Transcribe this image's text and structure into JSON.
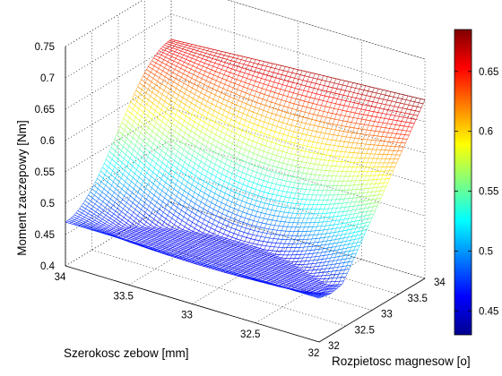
{
  "chart_data": {
    "type": "surface",
    "zlabel": "Moment zaczepowy [Nm]",
    "xlabel": "Szerokosc zebow [mm]",
    "ylabel": "Rozpietosc magnesow [o]",
    "xlim": [
      32,
      34
    ],
    "ylim": [
      32,
      34
    ],
    "zlim": [
      0.4,
      0.75
    ],
    "xticks": [
      34,
      33.5,
      33,
      32.5,
      32
    ],
    "yticks": [
      32,
      32.5,
      33,
      33.5,
      34
    ],
    "zticks": [
      0.4,
      0.45,
      0.5,
      0.55,
      0.6,
      0.65,
      0.7,
      0.75
    ],
    "corner_values": [
      {
        "x": 34,
        "y": 32,
        "z": 0.47
      },
      {
        "x": 34,
        "y": 34,
        "z": 0.66
      },
      {
        "x": 32,
        "y": 32,
        "z": 0.47
      },
      {
        "x": 32,
        "y": 34,
        "z": 0.685
      }
    ],
    "colorbar": {
      "min": 0.43,
      "max": 0.685,
      "ticks": [
        0.45,
        0.5,
        0.55,
        0.6,
        0.65
      ],
      "colormap": "jet"
    },
    "grid": true
  },
  "ticks_text": {
    "z": [
      "0.4",
      "0.45",
      "0.5",
      "0.55",
      "0.6",
      "0.65",
      "0.7",
      "0.75"
    ],
    "x": [
      "34",
      "33.5",
      "33",
      "32.5",
      "32"
    ],
    "y": [
      "32",
      "32.5",
      "33",
      "33.5",
      "34"
    ],
    "cb": [
      "0.45",
      "0.5",
      "0.55",
      "0.6",
      "0.65"
    ]
  }
}
